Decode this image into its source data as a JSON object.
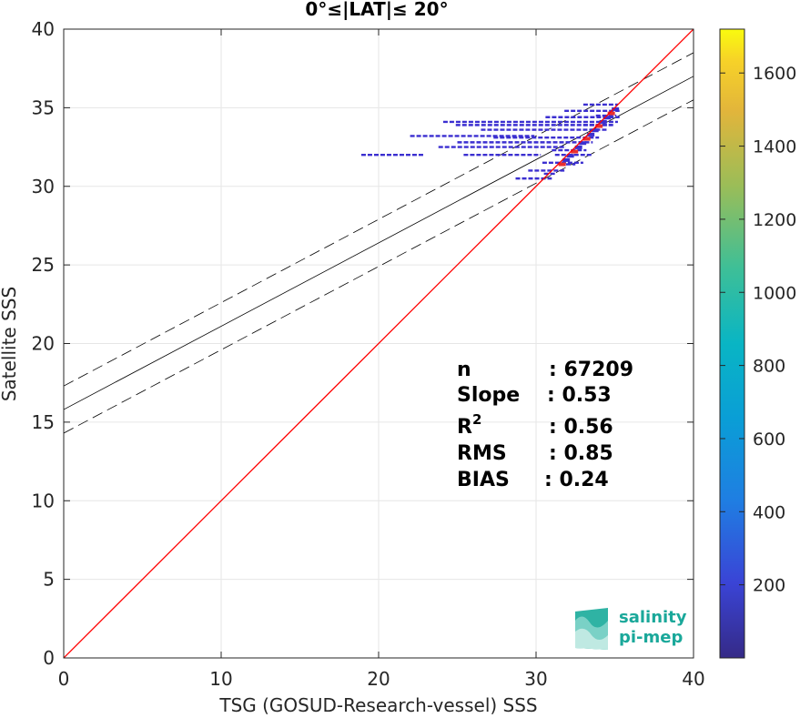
{
  "chart_data": {
    "type": "scatter",
    "title": "0°≤|LAT|≤ 20°",
    "xlabel": "TSG (GOSUD-Research-vessel) SSS",
    "ylabel": "Satellite SSS",
    "xlim": [
      0,
      40
    ],
    "ylim": [
      0,
      40
    ],
    "x_ticks": [
      "0",
      "10",
      "20",
      "30",
      "40"
    ],
    "y_ticks": [
      "0",
      "5",
      "10",
      "15",
      "20",
      "25",
      "30",
      "35",
      "40"
    ],
    "grid": true,
    "reference_line": {
      "x": [
        0,
        40
      ],
      "y": [
        0,
        40
      ],
      "color": "#ff0000"
    },
    "fit_line": {
      "x": [
        0,
        40
      ],
      "y": [
        15.8,
        37.0
      ]
    },
    "fit_band_upper": {
      "x": [
        0,
        40
      ],
      "y": [
        17.3,
        38.5
      ]
    },
    "fit_band_lower": {
      "x": [
        0,
        40
      ],
      "y": [
        14.3,
        35.5
      ]
    },
    "density_segments": [
      {
        "x0": 18.9,
        "x1": 22.9,
        "y": 32.0
      },
      {
        "x0": 25.4,
        "x1": 30.3,
        "y": 32.0
      },
      {
        "x0": 31.2,
        "x1": 33.6,
        "y": 32.0
      },
      {
        "x0": 23.8,
        "x1": 31.9,
        "y": 32.5
      },
      {
        "x0": 25.0,
        "x1": 33.6,
        "y": 32.8
      },
      {
        "x0": 27.3,
        "x1": 34.0,
        "y": 33.1
      },
      {
        "x0": 22.0,
        "x1": 29.9,
        "y": 33.2
      },
      {
        "x0": 26.5,
        "x1": 34.5,
        "y": 33.6
      },
      {
        "x0": 24.9,
        "x1": 35.0,
        "y": 33.9
      },
      {
        "x0": 24.1,
        "x1": 35.2,
        "y": 34.1
      },
      {
        "x0": 30.6,
        "x1": 35.3,
        "y": 34.4
      },
      {
        "x0": 31.8,
        "x1": 35.3,
        "y": 34.8
      },
      {
        "x0": 33.0,
        "x1": 35.2,
        "y": 35.2
      },
      {
        "x0": 30.4,
        "x1": 33.0,
        "y": 31.5
      },
      {
        "x0": 29.5,
        "x1": 31.8,
        "y": 31.0
      },
      {
        "x0": 28.7,
        "x1": 31.0,
        "y": 30.5
      },
      {
        "x0": 31.0,
        "x1": 33.2,
        "y": 32.3
      },
      {
        "x0": 33.0,
        "x1": 34.8,
        "y": 33.9
      },
      {
        "x0": 33.8,
        "x1": 35.1,
        "y": 34.5
      },
      {
        "x0": 31.5,
        "x1": 32.5,
        "y": 31.4
      },
      {
        "x0": 30.5,
        "x1": 31.3,
        "y": 30.8
      }
    ],
    "colorbar": {
      "ticks": [
        "200",
        "400",
        "600",
        "800",
        "1000",
        "1200",
        "1400",
        "1600"
      ],
      "range": [
        0,
        1720
      ]
    },
    "stats": {
      "n": {
        "label": "n",
        "value": ": 67209"
      },
      "slope": {
        "label": "Slope",
        "value": ": 0.53"
      },
      "r2": {
        "label": "R",
        "sup": "2",
        "value": ": 0.56"
      },
      "rms": {
        "label": "RMS",
        "value": ": 0.85"
      },
      "bias": {
        "label": "BIAS",
        "value": ": 0.24"
      }
    }
  },
  "logo": {
    "line1": "salinity",
    "line2": "pi-mep"
  },
  "colors": {
    "reference": "#ff0000",
    "density_low": "#3b2fd0",
    "density_high": "#e83030",
    "axis": "#262626",
    "logo": "#1aa89a"
  }
}
